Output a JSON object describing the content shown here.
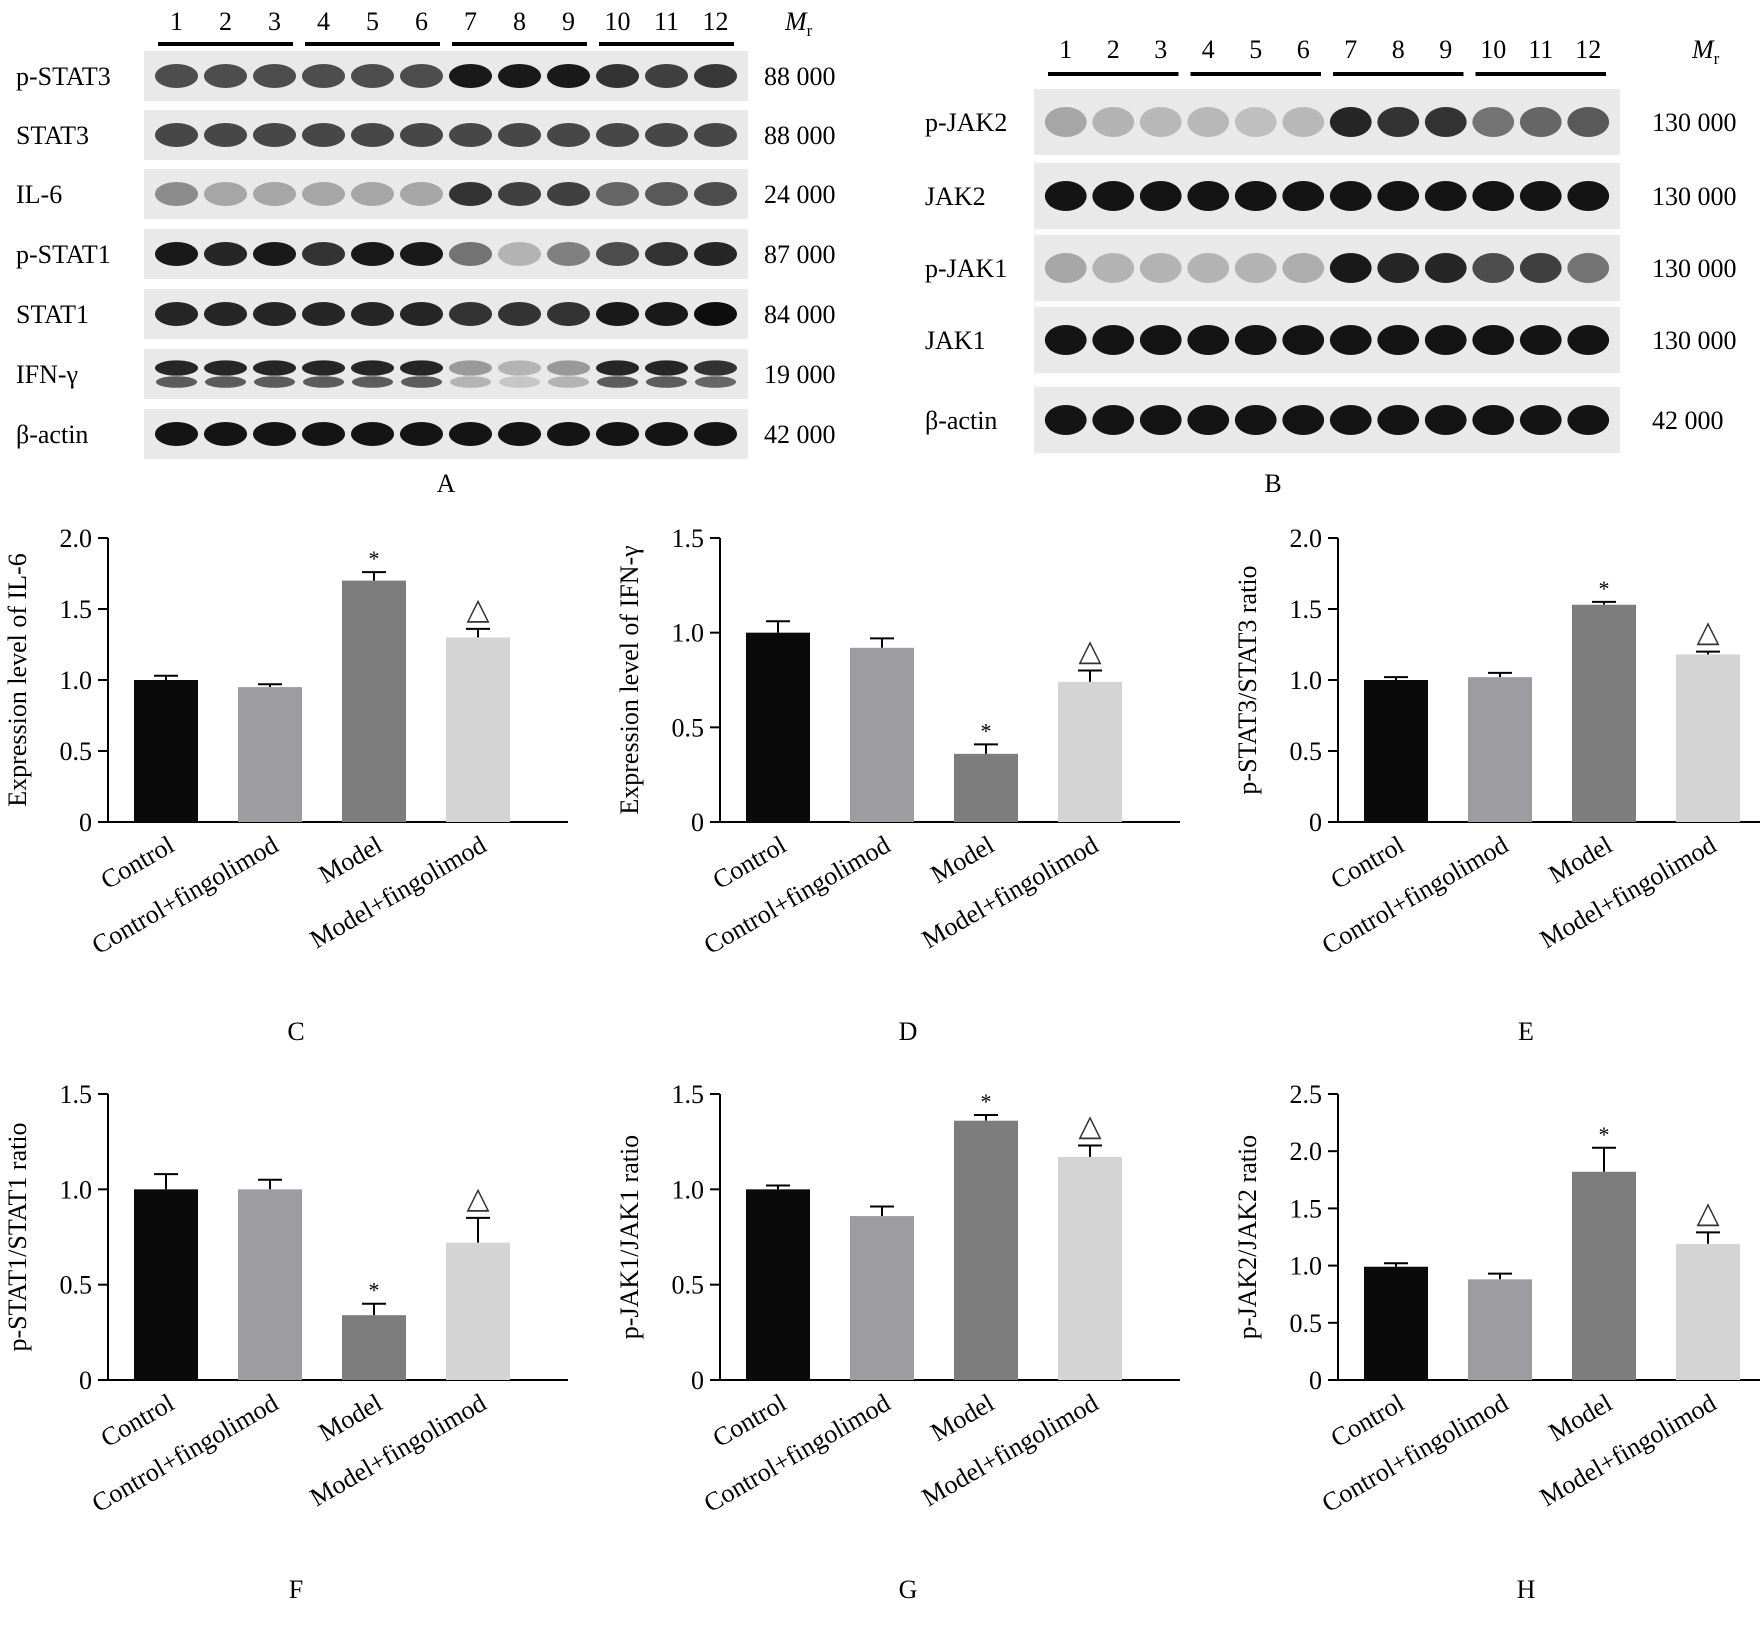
{
  "blot_a": {
    "letter": "A",
    "lanes": [
      "1",
      "2",
      "3",
      "4",
      "5",
      "6",
      "7",
      "8",
      "9",
      "10",
      "11",
      "12"
    ],
    "mr_header": "M",
    "mr_sub": "r",
    "rows": [
      {
        "label": "p-STAT3",
        "mr": "88 000",
        "intensity": [
          0.7,
          0.7,
          0.7,
          0.7,
          0.7,
          0.7,
          0.9,
          0.9,
          0.9,
          0.8,
          0.75,
          0.78
        ],
        "double": false
      },
      {
        "label": "STAT3",
        "mr": "88 000",
        "intensity": [
          0.72,
          0.72,
          0.72,
          0.72,
          0.72,
          0.72,
          0.72,
          0.72,
          0.72,
          0.72,
          0.72,
          0.72
        ],
        "double": false
      },
      {
        "label": "IL-6",
        "mr": "24 000",
        "intensity": [
          0.45,
          0.35,
          0.35,
          0.35,
          0.35,
          0.35,
          0.8,
          0.75,
          0.75,
          0.6,
          0.65,
          0.7
        ],
        "double": false
      },
      {
        "label": "p-STAT1",
        "mr": "87 000",
        "intensity": [
          0.9,
          0.85,
          0.9,
          0.8,
          0.9,
          0.9,
          0.55,
          0.3,
          0.5,
          0.7,
          0.8,
          0.85
        ],
        "double": false
      },
      {
        "label": "STAT1",
        "mr": "84 000",
        "intensity": [
          0.85,
          0.85,
          0.85,
          0.85,
          0.85,
          0.85,
          0.8,
          0.8,
          0.8,
          0.9,
          0.9,
          0.95
        ],
        "double": false
      },
      {
        "label": "IFN-γ",
        "mr": "19 000",
        "intensity": [
          0.85,
          0.85,
          0.85,
          0.85,
          0.85,
          0.85,
          0.4,
          0.3,
          0.4,
          0.85,
          0.85,
          0.8
        ],
        "double": true
      },
      {
        "label": "β-actin",
        "mr": "42 000",
        "intensity": [
          0.92,
          0.92,
          0.92,
          0.92,
          0.92,
          0.92,
          0.92,
          0.92,
          0.92,
          0.92,
          0.92,
          0.92
        ],
        "double": false
      }
    ]
  },
  "blot_b": {
    "letter": "B",
    "lanes": [
      "1",
      "2",
      "3",
      "4",
      "5",
      "6",
      "7",
      "8",
      "9",
      "10",
      "11",
      "12"
    ],
    "mr_header": "M",
    "mr_sub": "r",
    "rows": [
      {
        "label": "p-JAK2",
        "mr": "130 000",
        "intensity": [
          0.35,
          0.3,
          0.28,
          0.28,
          0.25,
          0.28,
          0.85,
          0.8,
          0.8,
          0.55,
          0.6,
          0.65
        ],
        "double": false
      },
      {
        "label": "JAK2",
        "mr": "130 000",
        "intensity": [
          0.92,
          0.92,
          0.92,
          0.92,
          0.92,
          0.92,
          0.92,
          0.92,
          0.92,
          0.92,
          0.92,
          0.92
        ],
        "double": false
      },
      {
        "label": "p-JAK1",
        "mr": "130 000",
        "intensity": [
          0.35,
          0.3,
          0.3,
          0.3,
          0.3,
          0.32,
          0.9,
          0.85,
          0.85,
          0.7,
          0.75,
          0.55
        ],
        "double": false
      },
      {
        "label": "JAK1",
        "mr": "130 000",
        "intensity": [
          0.92,
          0.92,
          0.92,
          0.92,
          0.92,
          0.92,
          0.92,
          0.92,
          0.92,
          0.92,
          0.92,
          0.92
        ],
        "double": false
      },
      {
        "label": "β-actin",
        "mr": "42 000",
        "intensity": [
          0.92,
          0.92,
          0.92,
          0.92,
          0.92,
          0.92,
          0.92,
          0.92,
          0.92,
          0.92,
          0.92,
          0.92
        ],
        "double": false
      }
    ]
  },
  "colors": {
    "control": "#0a0a0a",
    "control_fingolimod": "#9d9da1",
    "model": "#7d7d7d",
    "model_fingolimod": "#d4d4d4"
  },
  "chart_data": [
    {
      "panel": "C",
      "type": "bar",
      "categories": [
        "Control",
        "Control+fingolimod",
        "Model",
        "Model+fingolimod"
      ],
      "values": [
        1.0,
        0.95,
        1.7,
        1.3
      ],
      "errors": [
        0.03,
        0.02,
        0.06,
        0.06
      ],
      "marks": [
        "",
        "",
        "*",
        "△"
      ],
      "ylabel": "Expression level of IL-6",
      "ylim": [
        0,
        2.0
      ],
      "yticks": [
        "0",
        "0.5",
        "1.0",
        "1.5",
        "2.0"
      ]
    },
    {
      "panel": "D",
      "type": "bar",
      "categories": [
        "Control",
        "Control+fingolimod",
        "Model",
        "Model+fingolimod"
      ],
      "values": [
        1.0,
        0.92,
        0.36,
        0.74
      ],
      "errors": [
        0.06,
        0.05,
        0.05,
        0.06
      ],
      "marks": [
        "",
        "",
        "*",
        "△"
      ],
      "ylabel": "Expression level of IFN-γ",
      "ylim": [
        0,
        1.5
      ],
      "yticks": [
        "0",
        "0.5",
        "1.0",
        "1.5"
      ]
    },
    {
      "panel": "E",
      "type": "bar",
      "categories": [
        "Control",
        "Control+fingolimod",
        "Model",
        "Model+fingolimod"
      ],
      "values": [
        1.0,
        1.02,
        1.53,
        1.18
      ],
      "errors": [
        0.02,
        0.03,
        0.02,
        0.02
      ],
      "marks": [
        "",
        "",
        "*",
        "△"
      ],
      "ylabel": "p-STAT3/STAT3 ratio",
      "ylim": [
        0,
        2.0
      ],
      "yticks": [
        "0",
        "0.5",
        "1.0",
        "1.5",
        "2.0"
      ]
    },
    {
      "panel": "F",
      "type": "bar",
      "categories": [
        "Control",
        "Control+fingolimod",
        "Model",
        "Model+fingolimod"
      ],
      "values": [
        1.0,
        1.0,
        0.34,
        0.72
      ],
      "errors": [
        0.08,
        0.05,
        0.06,
        0.13
      ],
      "marks": [
        "",
        "",
        "*",
        "△"
      ],
      "ylabel": "p-STAT1/STAT1 ratio",
      "ylim": [
        0,
        1.5
      ],
      "yticks": [
        "0",
        "0.5",
        "1.0",
        "1.5"
      ]
    },
    {
      "panel": "G",
      "type": "bar",
      "categories": [
        "Control",
        "Control+fingolimod",
        "Model",
        "Model+fingolimod"
      ],
      "values": [
        1.0,
        0.86,
        1.36,
        1.17
      ],
      "errors": [
        0.02,
        0.05,
        0.03,
        0.06
      ],
      "marks": [
        "",
        "",
        "*",
        "△"
      ],
      "ylabel": "p-JAK1/JAK1 ratio",
      "ylim": [
        0,
        1.5
      ],
      "yticks": [
        "0",
        "0.5",
        "1.0",
        "1.5"
      ]
    },
    {
      "panel": "H",
      "type": "bar",
      "categories": [
        "Control",
        "Control+fingolimod",
        "Model",
        "Model+fingolimod"
      ],
      "values": [
        0.99,
        0.88,
        1.82,
        1.19
      ],
      "errors": [
        0.03,
        0.05,
        0.21,
        0.1
      ],
      "marks": [
        "",
        "",
        "*",
        "△"
      ],
      "ylabel": "p-JAK2/JAK2 ratio",
      "ylim": [
        0,
        2.5
      ],
      "yticks": [
        "0",
        "0.5",
        "1.0",
        "1.5",
        "2.0",
        "2.5"
      ]
    }
  ]
}
